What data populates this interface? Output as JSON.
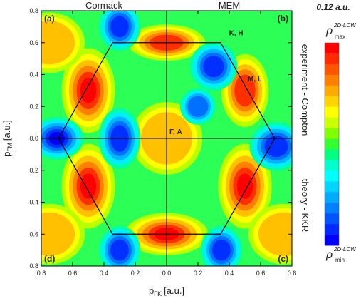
{
  "chart_data": {
    "type": "heatmap",
    "title": "",
    "panel_titles": {
      "left": "Cormack",
      "right": "MEM"
    },
    "panel_labels": [
      "(a)",
      "(b)",
      "(c)",
      "(d)"
    ],
    "point_labels": [
      {
        "label": "K, H",
        "x": 0.38,
        "y": 0.62
      },
      {
        "label": "M, L",
        "x": 0.5,
        "y": 0.33
      },
      {
        "label": "Γ, A",
        "x": 0.0,
        "y": 0.0
      }
    ],
    "xlabel": "p",
    "xlabel_subscript": "ΓK",
    "xlabel_unit": "[a.u.]",
    "ylabel": "p",
    "ylabel_subscript": "ΓM",
    "ylabel_unit": "[a.u.]",
    "x_ticks": [
      "0.8",
      "0.6",
      "0.4",
      "0.2",
      "0.0",
      "0.2",
      "0.4",
      "0.6",
      "0.8"
    ],
    "y_ticks": [
      "0.8",
      "0.6",
      "0.4",
      "0.2",
      "0.0",
      "0.2",
      "0.4",
      "0.6",
      "0.8"
    ],
    "xlim": [
      -0.8,
      0.8
    ],
    "ylim": [
      -0.8,
      0.8
    ],
    "right_labels": {
      "top": "experiment - Compton",
      "bottom": "theory - KKR"
    },
    "colorbar": {
      "top_value": "0.12 a.u.",
      "max_symbol": "ρ",
      "max_superscript": "2D-LCW",
      "max_subscript": "max",
      "min_symbol": "ρ",
      "min_superscript": "2D-LCW",
      "min_subscript": "min",
      "colors": [
        "#ff0000",
        "#ff2a00",
        "#ff5500",
        "#ff8000",
        "#ffaa00",
        "#ffd400",
        "#ffff00",
        "#ccff00",
        "#80ff00",
        "#33ff33",
        "#00ff80",
        "#00ffcc",
        "#00ffff",
        "#00d4ff",
        "#00aaff",
        "#0080ff",
        "#0055ff",
        "#002aff",
        "#0000ff"
      ]
    },
    "hexagon": {
      "vertices": [
        [
          0.69,
          0.0
        ],
        [
          0.345,
          0.6
        ],
        [
          -0.345,
          0.6
        ],
        [
          -0.69,
          0.0
        ],
        [
          -0.345,
          -0.6
        ],
        [
          0.345,
          -0.6
        ]
      ]
    },
    "blobs": [
      {
        "x": -0.5,
        "y": 0.3,
        "rx": 0.09,
        "ry": 0.14,
        "level": 1.0
      },
      {
        "x": -0.5,
        "y": -0.3,
        "rx": 0.09,
        "ry": 0.14,
        "level": 1.0
      },
      {
        "x": 0.5,
        "y": -0.3,
        "rx": 0.09,
        "ry": 0.14,
        "level": 1.0
      },
      {
        "x": 0.5,
        "y": 0.3,
        "rx": 0.08,
        "ry": 0.12,
        "level": 0.85
      },
      {
        "x": 0.0,
        "y": -0.6,
        "rx": 0.14,
        "ry": 0.07,
        "level": 1.0
      },
      {
        "x": 0.0,
        "y": 0.6,
        "rx": 0.13,
        "ry": 0.06,
        "level": 0.9
      },
      {
        "x": 0.0,
        "y": 0.0,
        "rx": 0.12,
        "ry": 0.12,
        "level": 0.45
      },
      {
        "x": -0.75,
        "y": 0.6,
        "rx": 0.12,
        "ry": 0.1,
        "level": 0.55
      },
      {
        "x": -0.75,
        "y": -0.6,
        "rx": 0.12,
        "ry": 0.1,
        "level": 0.55
      },
      {
        "x": 0.75,
        "y": -0.6,
        "rx": 0.12,
        "ry": 0.1,
        "level": 0.5
      }
    ],
    "wells": [
      {
        "x": -0.7,
        "y": 0.0,
        "rx": 0.09,
        "ry": 0.07,
        "level": 1.0
      },
      {
        "x": -0.3,
        "y": 0.0,
        "rx": 0.07,
        "ry": 0.1,
        "level": 0.8
      },
      {
        "x": -0.3,
        "y": 0.7,
        "rx": 0.07,
        "ry": 0.08,
        "level": 0.9
      },
      {
        "x": -0.3,
        "y": -0.7,
        "rx": 0.07,
        "ry": 0.08,
        "level": 0.9
      },
      {
        "x": 0.3,
        "y": 0.45,
        "rx": 0.08,
        "ry": 0.08,
        "level": 0.85
      },
      {
        "x": 0.35,
        "y": -0.7,
        "rx": 0.07,
        "ry": 0.08,
        "level": 0.85
      },
      {
        "x": 0.7,
        "y": -0.05,
        "rx": 0.09,
        "ry": 0.08,
        "level": 0.9
      },
      {
        "x": 0.2,
        "y": 0.2,
        "rx": 0.06,
        "ry": 0.06,
        "level": 0.7
      }
    ]
  }
}
